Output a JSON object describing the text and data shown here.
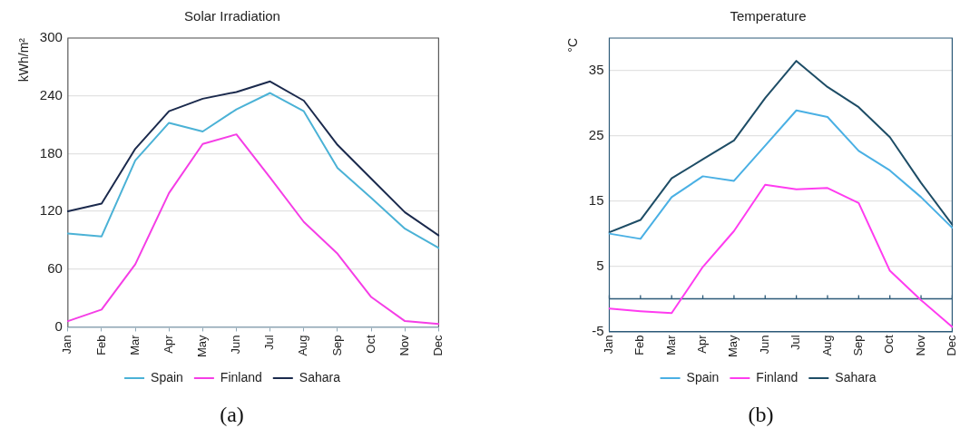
{
  "chart_data": [
    {
      "type": "line",
      "title": "Solar Irradiation",
      "ylabel": "kWh/m²",
      "categories": [
        "Jan",
        "Feb",
        "Mar",
        "Apr",
        "May",
        "Jun",
        "Jul",
        "Aug",
        "Sep",
        "Oct",
        "Nov",
        "Dec"
      ],
      "series": [
        {
          "name": "Spain",
          "color": "#4bb2d6",
          "values": [
            97,
            94,
            173,
            212,
            203,
            226,
            243,
            224,
            165,
            134,
            102,
            82
          ]
        },
        {
          "name": "Finland",
          "color": "#f53ee6",
          "values": [
            6,
            18,
            65,
            139,
            190,
            200,
            155,
            109,
            76,
            31,
            6,
            3
          ]
        },
        {
          "name": "Sahara",
          "color": "#1b2a4d",
          "values": [
            120,
            128,
            185,
            224,
            237,
            244,
            255,
            235,
            189,
            154,
            119,
            95
          ]
        }
      ],
      "ylim": [
        0,
        300
      ],
      "yticks": [
        0,
        60,
        120,
        180,
        240,
        300
      ],
      "grid": "y",
      "legend": "bottom",
      "annotations": [
        "(a)"
      ]
    },
    {
      "type": "line",
      "title": "Temperature",
      "ylabel": "°C",
      "categories": [
        "Jan",
        "Feb",
        "Mar",
        "Apr",
        "May",
        "Jun",
        "Jul",
        "Aug",
        "Sep",
        "Oct",
        "Nov",
        "Dec"
      ],
      "series": [
        {
          "name": "Spain",
          "color": "#4ab0e4",
          "values": [
            10.0,
            9.2,
            15.6,
            18.8,
            18.1,
            23.5,
            28.9,
            27.9,
            22.7,
            19.7,
            15.6,
            10.9
          ]
        },
        {
          "name": "Finland",
          "color": "#ff3cf0",
          "values": [
            -1.5,
            -1.9,
            -2.2,
            4.9,
            10.4,
            17.5,
            16.8,
            17.0,
            14.7,
            4.3,
            -0.2,
            -4.3
          ]
        },
        {
          "name": "Sahara",
          "color": "#1e4d66",
          "values": [
            10.2,
            12.1,
            18.5,
            21.4,
            24.3,
            30.8,
            36.5,
            32.5,
            29.4,
            24.8,
            17.8,
            11.4
          ]
        }
      ],
      "ylim": [
        -5,
        40
      ],
      "yticks": [
        -5,
        5,
        15,
        25,
        35
      ],
      "grid": "y",
      "legend": "bottom",
      "ref_lines": [
        {
          "axis": "y",
          "value": 0,
          "color": "#2d5a78"
        }
      ],
      "annotations": [
        "(b)"
      ]
    }
  ]
}
